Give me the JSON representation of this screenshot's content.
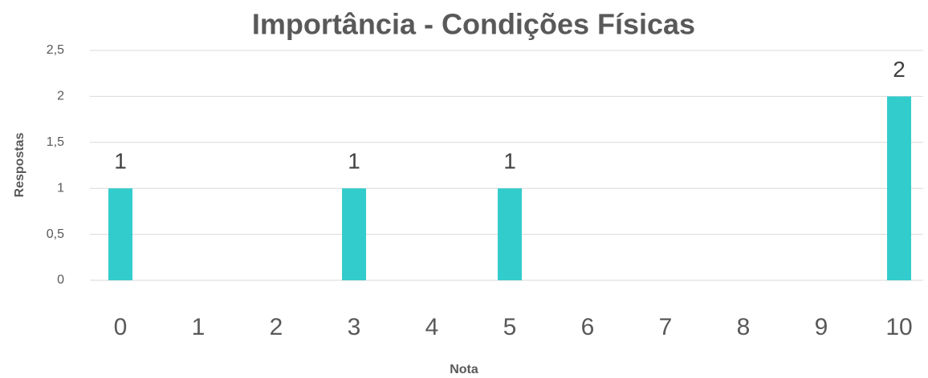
{
  "chart_data": {
    "type": "bar",
    "title": "Importância - Condições Físicas",
    "x_label": "Nota",
    "y_label": "Respostas",
    "categories": [
      "0",
      "1",
      "2",
      "3",
      "4",
      "5",
      "6",
      "7",
      "8",
      "9",
      "10"
    ],
    "values": [
      1,
      null,
      null,
      1,
      null,
      1,
      null,
      null,
      null,
      null,
      2
    ],
    "color": "#33cccc",
    "ylim": [
      0,
      2.5
    ],
    "yticks": [
      0,
      {
        "value": 0.5,
        "label": "0,5"
      },
      1,
      {
        "value": 1.5,
        "label": "1,5"
      },
      2,
      {
        "value": 2.5,
        "label": "2,5"
      }
    ],
    "grid": true
  }
}
